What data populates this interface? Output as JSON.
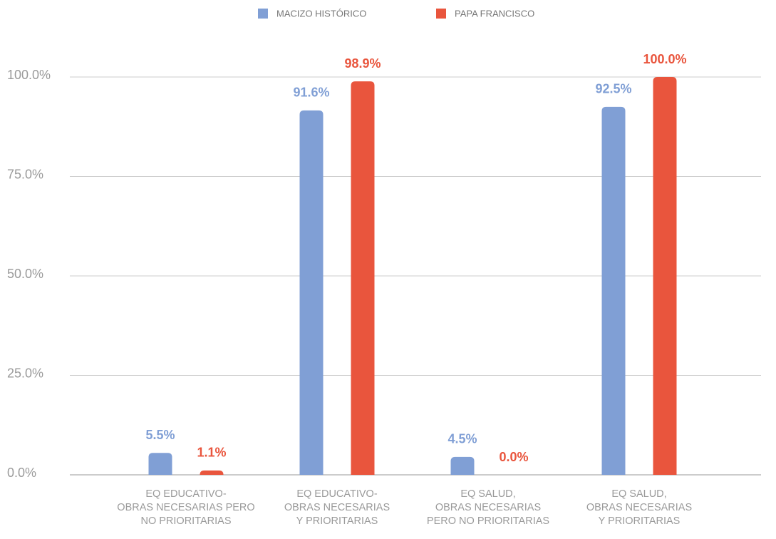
{
  "chart_data": {
    "type": "bar",
    "categories": [
      [
        "EQ EDUCATIVO-",
        "OBRAS NECESARIAS PERO",
        "NO PRIORITARIAS"
      ],
      [
        "EQ EDUCATIVO-",
        "OBRAS NECESARIAS",
        "Y PRIORITARIAS"
      ],
      [
        "EQ SALUD,",
        "OBRAS NECESARIAS",
        "PERO NO PRIORITARIAS"
      ],
      [
        "EQ SALUD,",
        "OBRAS NECESARIAS",
        "Y PRIORITARIAS"
      ]
    ],
    "series": [
      {
        "name": "MACIZO HISTÓRICO",
        "color": "#809fd5",
        "values": [
          5.5,
          91.6,
          4.5,
          92.5
        ],
        "value_labels": [
          "5.5%",
          "91.6%",
          "4.5%",
          "92.5%"
        ]
      },
      {
        "name": "PAPA FRANCISCO",
        "color": "#e9553d",
        "values": [
          1.1,
          98.9,
          0.0,
          100.0
        ],
        "value_labels": [
          "1.1%",
          "98.9%",
          "0.0%",
          "100.0%"
        ]
      }
    ],
    "ylim": [
      0,
      100
    ],
    "yticks": [
      {
        "value": 0,
        "label": "0.0%"
      },
      {
        "value": 25,
        "label": "25.0%"
      },
      {
        "value": 50,
        "label": "50.0%"
      },
      {
        "value": 75,
        "label": "75.0%"
      },
      {
        "value": 100,
        "label": "100.0%"
      }
    ],
    "grid": true,
    "legend": "top"
  }
}
